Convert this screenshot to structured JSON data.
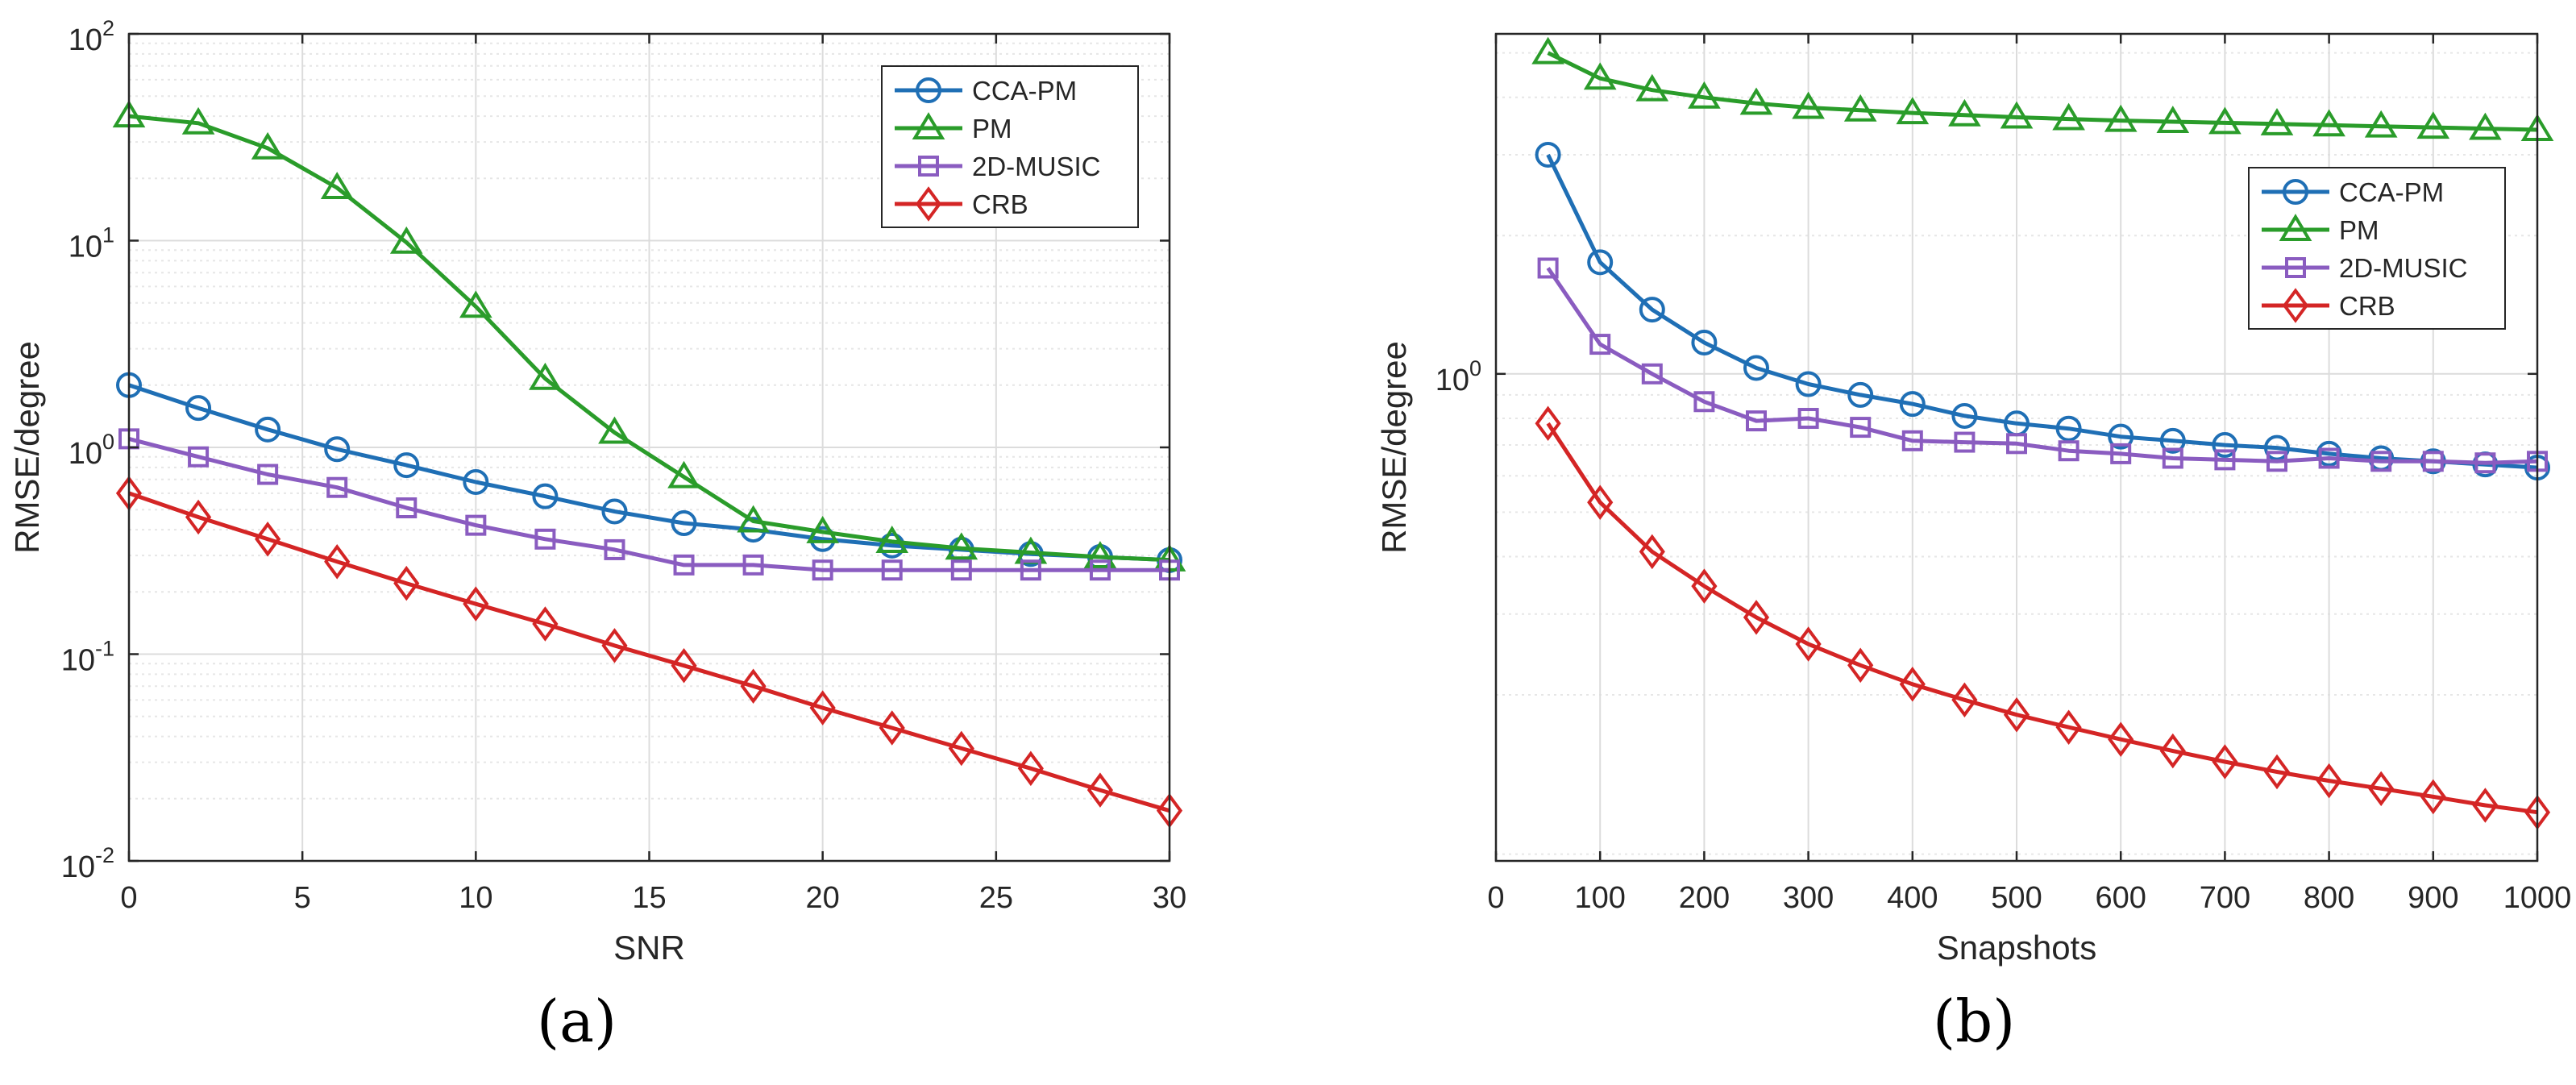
{
  "colors": {
    "cca_pm": "#1f6fb5",
    "pm": "#2a9c2a",
    "music": "#8a5cc0",
    "crb": "#d42525",
    "grid": "#dcdcdc",
    "minor_grid": "#e6e6e6"
  },
  "panels": [
    {
      "label": "(a)"
    },
    {
      "label": "(b)"
    }
  ],
  "chart_data": [
    {
      "type": "line",
      "xlabel": "SNR",
      "ylabel": "RMSE/degree",
      "yscale": "log",
      "xlim": [
        0,
        30
      ],
      "ylim": [
        0.01,
        100
      ],
      "xticks": [
        0,
        5,
        10,
        15,
        20,
        25,
        30
      ],
      "xtick_labels": [
        "0",
        "5",
        "10",
        "15",
        "20",
        "25",
        "30"
      ],
      "yticks": [
        0.01,
        0.1,
        1,
        10,
        100
      ],
      "ytick_labels": [
        {
          "base": "10",
          "exp": "-2"
        },
        {
          "base": "10",
          "exp": "-1"
        },
        {
          "base": "10",
          "exp": "0"
        },
        {
          "base": "10",
          "exp": "1"
        },
        {
          "base": "10",
          "exp": "2"
        }
      ],
      "grid": true,
      "legend_position": "top-right",
      "x": [
        0,
        2,
        4,
        6,
        8,
        10,
        12,
        14,
        16,
        18,
        20,
        22,
        24,
        26,
        28,
        30
      ],
      "series": [
        {
          "name": "CCA-PM",
          "marker": "circle",
          "color_key": "cca_pm",
          "values": [
            2.0,
            1.55,
            1.22,
            0.98,
            0.82,
            0.68,
            0.58,
            0.49,
            0.43,
            0.4,
            0.36,
            0.335,
            0.32,
            0.305,
            0.295,
            0.285
          ]
        },
        {
          "name": "PM",
          "marker": "triangle",
          "color_key": "pm",
          "values": [
            40,
            37,
            28,
            18,
            9.8,
            4.8,
            2.15,
            1.18,
            0.72,
            0.44,
            0.39,
            0.35,
            0.325,
            0.31,
            0.295,
            0.285
          ]
        },
        {
          "name": "2D-MUSIC",
          "marker": "square",
          "color_key": "music",
          "values": [
            1.1,
            0.9,
            0.74,
            0.64,
            0.51,
            0.42,
            0.36,
            0.32,
            0.27,
            0.27,
            0.255,
            0.255,
            0.255,
            0.255,
            0.255,
            0.255
          ]
        },
        {
          "name": "CRB",
          "marker": "diamond",
          "color_key": "crb",
          "values": [
            0.6,
            0.46,
            0.36,
            0.28,
            0.22,
            0.175,
            0.14,
            0.11,
            0.088,
            0.07,
            0.055,
            0.044,
            0.035,
            0.028,
            0.022,
            0.0175
          ]
        }
      ]
    },
    {
      "type": "line",
      "xlabel": "Snapshots",
      "ylabel": "RMSE/degree",
      "yscale": "log",
      "xlim": [
        0,
        1000
      ],
      "ylim": [
        0.087,
        5.5
      ],
      "xticks": [
        0,
        100,
        200,
        300,
        400,
        500,
        600,
        700,
        800,
        900,
        1000
      ],
      "xtick_labels": [
        "0",
        "100",
        "200",
        "300",
        "400",
        "500",
        "600",
        "700",
        "800",
        "900",
        "1000"
      ],
      "yticks": [
        1
      ],
      "ytick_labels": [
        {
          "base": "10",
          "exp": "0"
        }
      ],
      "grid": true,
      "legend_position": "top-right",
      "x": [
        50,
        100,
        150,
        200,
        250,
        300,
        350,
        400,
        450,
        500,
        550,
        600,
        650,
        700,
        750,
        800,
        850,
        900,
        950,
        1000
      ],
      "series": [
        {
          "name": "CCA-PM",
          "marker": "circle",
          "color_key": "cca_pm",
          "values": [
            3.0,
            1.75,
            1.38,
            1.17,
            1.03,
            0.95,
            0.9,
            0.86,
            0.81,
            0.78,
            0.76,
            0.73,
            0.715,
            0.7,
            0.69,
            0.67,
            0.655,
            0.645,
            0.635,
            0.625
          ]
        },
        {
          "name": "PM",
          "marker": "triangle",
          "color_key": "pm",
          "values": [
            5.0,
            4.4,
            4.15,
            4.0,
            3.88,
            3.8,
            3.75,
            3.7,
            3.66,
            3.62,
            3.59,
            3.56,
            3.54,
            3.52,
            3.5,
            3.48,
            3.46,
            3.44,
            3.42,
            3.4
          ]
        },
        {
          "name": "2D-MUSIC",
          "marker": "square",
          "color_key": "music",
          "values": [
            1.7,
            1.16,
            1.0,
            0.87,
            0.79,
            0.8,
            0.765,
            0.715,
            0.71,
            0.705,
            0.68,
            0.67,
            0.655,
            0.65,
            0.645,
            0.655,
            0.645,
            0.645,
            0.64,
            0.645
          ]
        },
        {
          "name": "CRB",
          "marker": "diamond",
          "color_key": "crb",
          "values": [
            0.78,
            0.525,
            0.41,
            0.345,
            0.295,
            0.258,
            0.232,
            0.211,
            0.195,
            0.181,
            0.17,
            0.16,
            0.151,
            0.143,
            0.136,
            0.13,
            0.125,
            0.12,
            0.115,
            0.111
          ]
        }
      ]
    }
  ]
}
